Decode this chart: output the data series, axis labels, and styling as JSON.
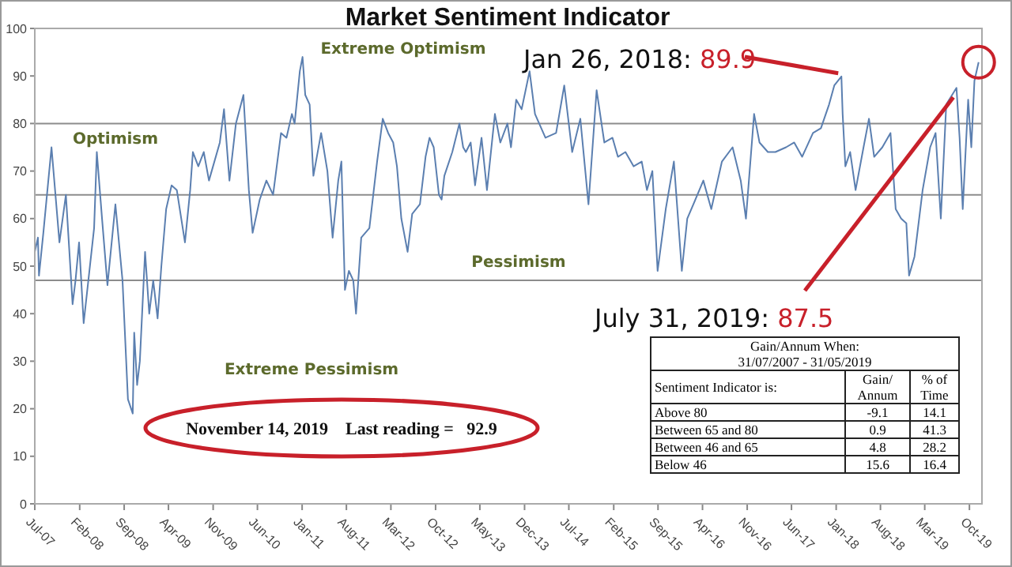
{
  "chart_data": {
    "type": "line",
    "title": "Market Sentiment Indicator",
    "x": [
      "2007-07-01",
      "2007-07-16",
      "2007-07-21",
      "2007-08-11",
      "2007-09-19",
      "2007-10-27",
      "2007-11-27",
      "2007-12-29",
      "2008-01-12",
      "2008-01-29",
      "2008-02-20",
      "2008-04-10",
      "2008-04-23",
      "2008-05-18",
      "2008-06-13",
      "2008-07-21",
      "2008-08-24",
      "2008-09-19",
      "2008-10-12",
      "2008-10-19",
      "2008-11-02",
      "2008-11-15",
      "2008-12-10",
      "2008-12-30",
      "2009-01-18",
      "2009-02-08",
      "2009-02-26",
      "2009-03-21",
      "2009-04-16",
      "2009-05-11",
      "2009-06-19",
      "2009-07-14",
      "2009-07-27",
      "2009-08-22",
      "2009-09-17",
      "2009-10-12",
      "2009-12-03",
      "2009-12-23",
      "2010-01-18",
      "2010-02-18",
      "2010-03-26",
      "2010-04-21",
      "2010-05-09",
      "2010-06-12",
      "2010-07-14",
      "2010-08-15",
      "2010-09-22",
      "2010-10-18",
      "2010-11-13",
      "2010-11-26",
      "2010-12-21",
      "2011-01-03",
      "2011-01-16",
      "2011-02-06",
      "2011-02-24",
      "2011-04-02",
      "2011-05-02",
      "2011-05-27",
      "2011-06-23",
      "2011-07-08",
      "2011-07-25",
      "2011-08-13",
      "2011-09-03",
      "2011-09-16",
      "2011-10-11",
      "2011-11-19",
      "2011-12-26",
      "2012-01-22",
      "2012-02-17",
      "2012-03-12",
      "2012-03-30",
      "2012-04-20",
      "2012-05-20",
      "2012-06-11",
      "2012-07-18",
      "2012-08-14",
      "2012-09-02",
      "2012-09-22",
      "2012-10-17",
      "2012-10-30",
      "2012-11-12",
      "2012-12-20",
      "2013-01-23",
      "2013-02-10",
      "2013-02-23",
      "2013-03-18",
      "2013-04-08",
      "2013-05-09",
      "2013-06-04",
      "2013-07-12",
      "2013-08-07",
      "2013-09-10",
      "2013-09-27",
      "2013-10-22",
      "2013-11-17",
      "2013-12-25",
      "2014-01-20",
      "2014-03-11",
      "2014-05-01",
      "2014-06-09",
      "2014-07-17",
      "2014-08-25",
      "2014-10-03",
      "2014-11-11",
      "2014-12-18",
      "2015-01-26",
      "2015-02-21",
      "2015-03-29",
      "2015-05-07",
      "2015-06-15",
      "2015-07-10",
      "2015-08-05",
      "2015-08-30",
      "2015-10-08",
      "2015-11-16",
      "2015-12-24",
      "2016-01-19",
      "2016-02-27",
      "2016-04-05",
      "2016-05-13",
      "2016-07-03",
      "2016-08-23",
      "2016-10-01",
      "2016-10-26",
      "2016-12-04",
      "2016-12-30",
      "2017-02-08",
      "2017-03-16",
      "2017-05-06",
      "2017-06-14",
      "2017-07-22",
      "2017-09-12",
      "2017-10-20",
      "2017-11-28",
      "2017-12-23",
      "2018-01-26",
      "2018-02-01",
      "2018-02-14",
      "2018-03-09",
      "2018-04-04",
      "2018-05-12",
      "2018-06-07",
      "2018-07-02",
      "2018-08-10",
      "2018-09-18",
      "2018-10-13",
      "2018-11-08",
      "2018-12-03",
      "2018-12-16",
      "2019-01-11",
      "2019-02-19",
      "2019-03-27",
      "2019-04-22",
      "2019-05-17",
      "2019-06-12",
      "2019-07-31",
      "2019-08-15",
      "2019-08-30",
      "2019-09-25",
      "2019-10-10",
      "2019-10-25",
      "2019-11-14"
    ],
    "series": [
      {
        "color": "#5b7fb0",
        "values": [
          53,
          56,
          48,
          57,
          75,
          55,
          65,
          42,
          47,
          55,
          38,
          58,
          74,
          60,
          46,
          63,
          47,
          22,
          19,
          36,
          25,
          30,
          53,
          40,
          47,
          39,
          50,
          62,
          67,
          66,
          55,
          66,
          74,
          71,
          74,
          68,
          76,
          83,
          68,
          80,
          86,
          66,
          57,
          64,
          68,
          65,
          78,
          77,
          82,
          80,
          91,
          94,
          86,
          84,
          69,
          78,
          70,
          56,
          68,
          72,
          45,
          49,
          47,
          40,
          56,
          58,
          72,
          81,
          78,
          76,
          71,
          60,
          53,
          61,
          63,
          73,
          77,
          75,
          65,
          64,
          69,
          74,
          80,
          75,
          74,
          76,
          67,
          77,
          66,
          82,
          76,
          80,
          75,
          85,
          83,
          91,
          82,
          77,
          78,
          88,
          74,
          81,
          63,
          87,
          76,
          77,
          73,
          74,
          71,
          72,
          66,
          70,
          49,
          62,
          72,
          49,
          60,
          64,
          68,
          62,
          72,
          75,
          68,
          60,
          82,
          76,
          74,
          74,
          75,
          76,
          73,
          78,
          79,
          84,
          88,
          89.9,
          82,
          71,
          74,
          66,
          75,
          81,
          73,
          75,
          78,
          62,
          60,
          59,
          48,
          52,
          66,
          75,
          78,
          60,
          84,
          87.5,
          77,
          62,
          85,
          75,
          89,
          92.9
        ]
      }
    ],
    "xlim": [
      "2007-07-01",
      "2019-11-30"
    ],
    "xticks": [
      {
        "value": "2007-07",
        "label": "Jul-07"
      },
      {
        "value": "2008-02",
        "label": "Feb-08"
      },
      {
        "value": "2008-09",
        "label": "Sep-08"
      },
      {
        "value": "2009-04",
        "label": "Apr-09"
      },
      {
        "value": "2009-11",
        "label": "Nov-09"
      },
      {
        "value": "2010-06",
        "label": "Jun-10"
      },
      {
        "value": "2011-01",
        "label": "Jan-11"
      },
      {
        "value": "2011-08",
        "label": "Aug-11"
      },
      {
        "value": "2012-03",
        "label": "Mar-12"
      },
      {
        "value": "2012-10",
        "label": "Oct-12"
      },
      {
        "value": "2013-05",
        "label": "May-13"
      },
      {
        "value": "2013-12",
        "label": "Dec-13"
      },
      {
        "value": "2014-07",
        "label": "Jul-14"
      },
      {
        "value": "2015-02",
        "label": "Feb-15"
      },
      {
        "value": "2015-09",
        "label": "Sep-15"
      },
      {
        "value": "2016-04",
        "label": "Apr-16"
      },
      {
        "value": "2016-11",
        "label": "Nov-16"
      },
      {
        "value": "2017-06",
        "label": "Jun-17"
      },
      {
        "value": "2018-01",
        "label": "Jan-18"
      },
      {
        "value": "2018-08",
        "label": "Aug-18"
      },
      {
        "value": "2019-03",
        "label": "Mar-19"
      },
      {
        "value": "2019-10",
        "label": "Oct-19"
      }
    ],
    "ylim": [
      0,
      100
    ],
    "yticks": [
      0,
      10,
      20,
      30,
      40,
      50,
      60,
      70,
      80,
      90,
      100
    ],
    "ref_lines": [
      {
        "axis": "y",
        "value": 80,
        "color": "#8c8c8c"
      },
      {
        "axis": "y",
        "value": 65,
        "color": "#8c8c8c"
      },
      {
        "axis": "y",
        "value": 47,
        "color": "#8c8c8c"
      }
    ],
    "marker": "none",
    "grid": false,
    "legend": false,
    "annotations": [
      {
        "text": "Jan 26, 2018: 89.9",
        "x": "2018-01-26",
        "y": 89.9
      },
      {
        "text": "July 31, 2019: 87.5",
        "x": "2019-07-31",
        "y": 87.5
      },
      "November 14, 2019    Last reading =   92.9",
      "Extreme Optimism",
      "Optimism",
      "Pessimism",
      "Extreme Pessimism",
      "Gain/Annum When:",
      "31/07/2007 - 31/05/2019",
      "Sentiment Indicator is:",
      "Gain/ Annum",
      "% of Time",
      "Above 80",
      "-9.1",
      "14.1",
      "Between 65 and 80",
      "0.9",
      "41.3",
      "Between 46 and 65",
      "4.8",
      "28.2",
      "Below 46",
      "15.6",
      "16.4"
    ]
  }
}
